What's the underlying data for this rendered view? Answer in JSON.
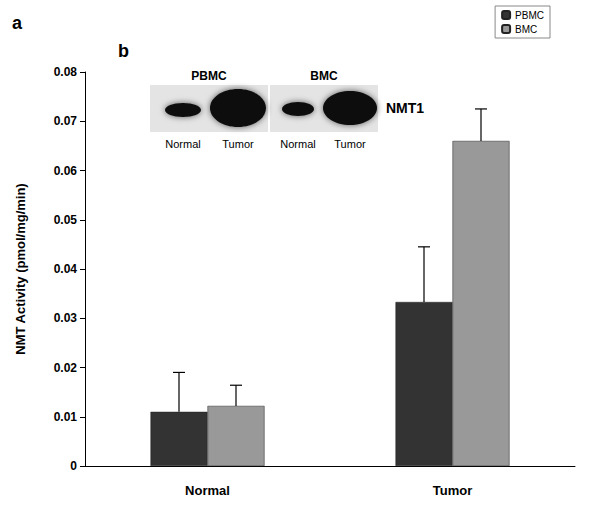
{
  "chart_data": {
    "type": "bar",
    "y_label": "NMT Activity (pmol/mg/min)",
    "categories": [
      "Normal",
      "Tumor"
    ],
    "series": [
      {
        "name": "PBMC",
        "color": "#333333",
        "values": [
          0.011,
          0.0333
        ],
        "errors": [
          0.008,
          0.0112
        ]
      },
      {
        "name": "BMC",
        "color": "#999999",
        "values": [
          0.0122,
          0.066
        ],
        "errors": [
          0.0042,
          0.0065
        ]
      }
    ],
    "ylim": [
      0,
      0.08
    ],
    "yticks": [
      0,
      0.01,
      0.02,
      0.03,
      0.04,
      0.05,
      0.06,
      0.07,
      0.08
    ],
    "grid": false,
    "legend": "top-right",
    "panel_labels": [
      "a",
      "b"
    ],
    "inset": {
      "label": "NMT1",
      "panels": [
        {
          "title": "PBMC",
          "lanes": [
            "Normal",
            "Tumor"
          ]
        },
        {
          "title": "BMC",
          "lanes": [
            "Normal",
            "Tumor"
          ]
        }
      ]
    }
  }
}
